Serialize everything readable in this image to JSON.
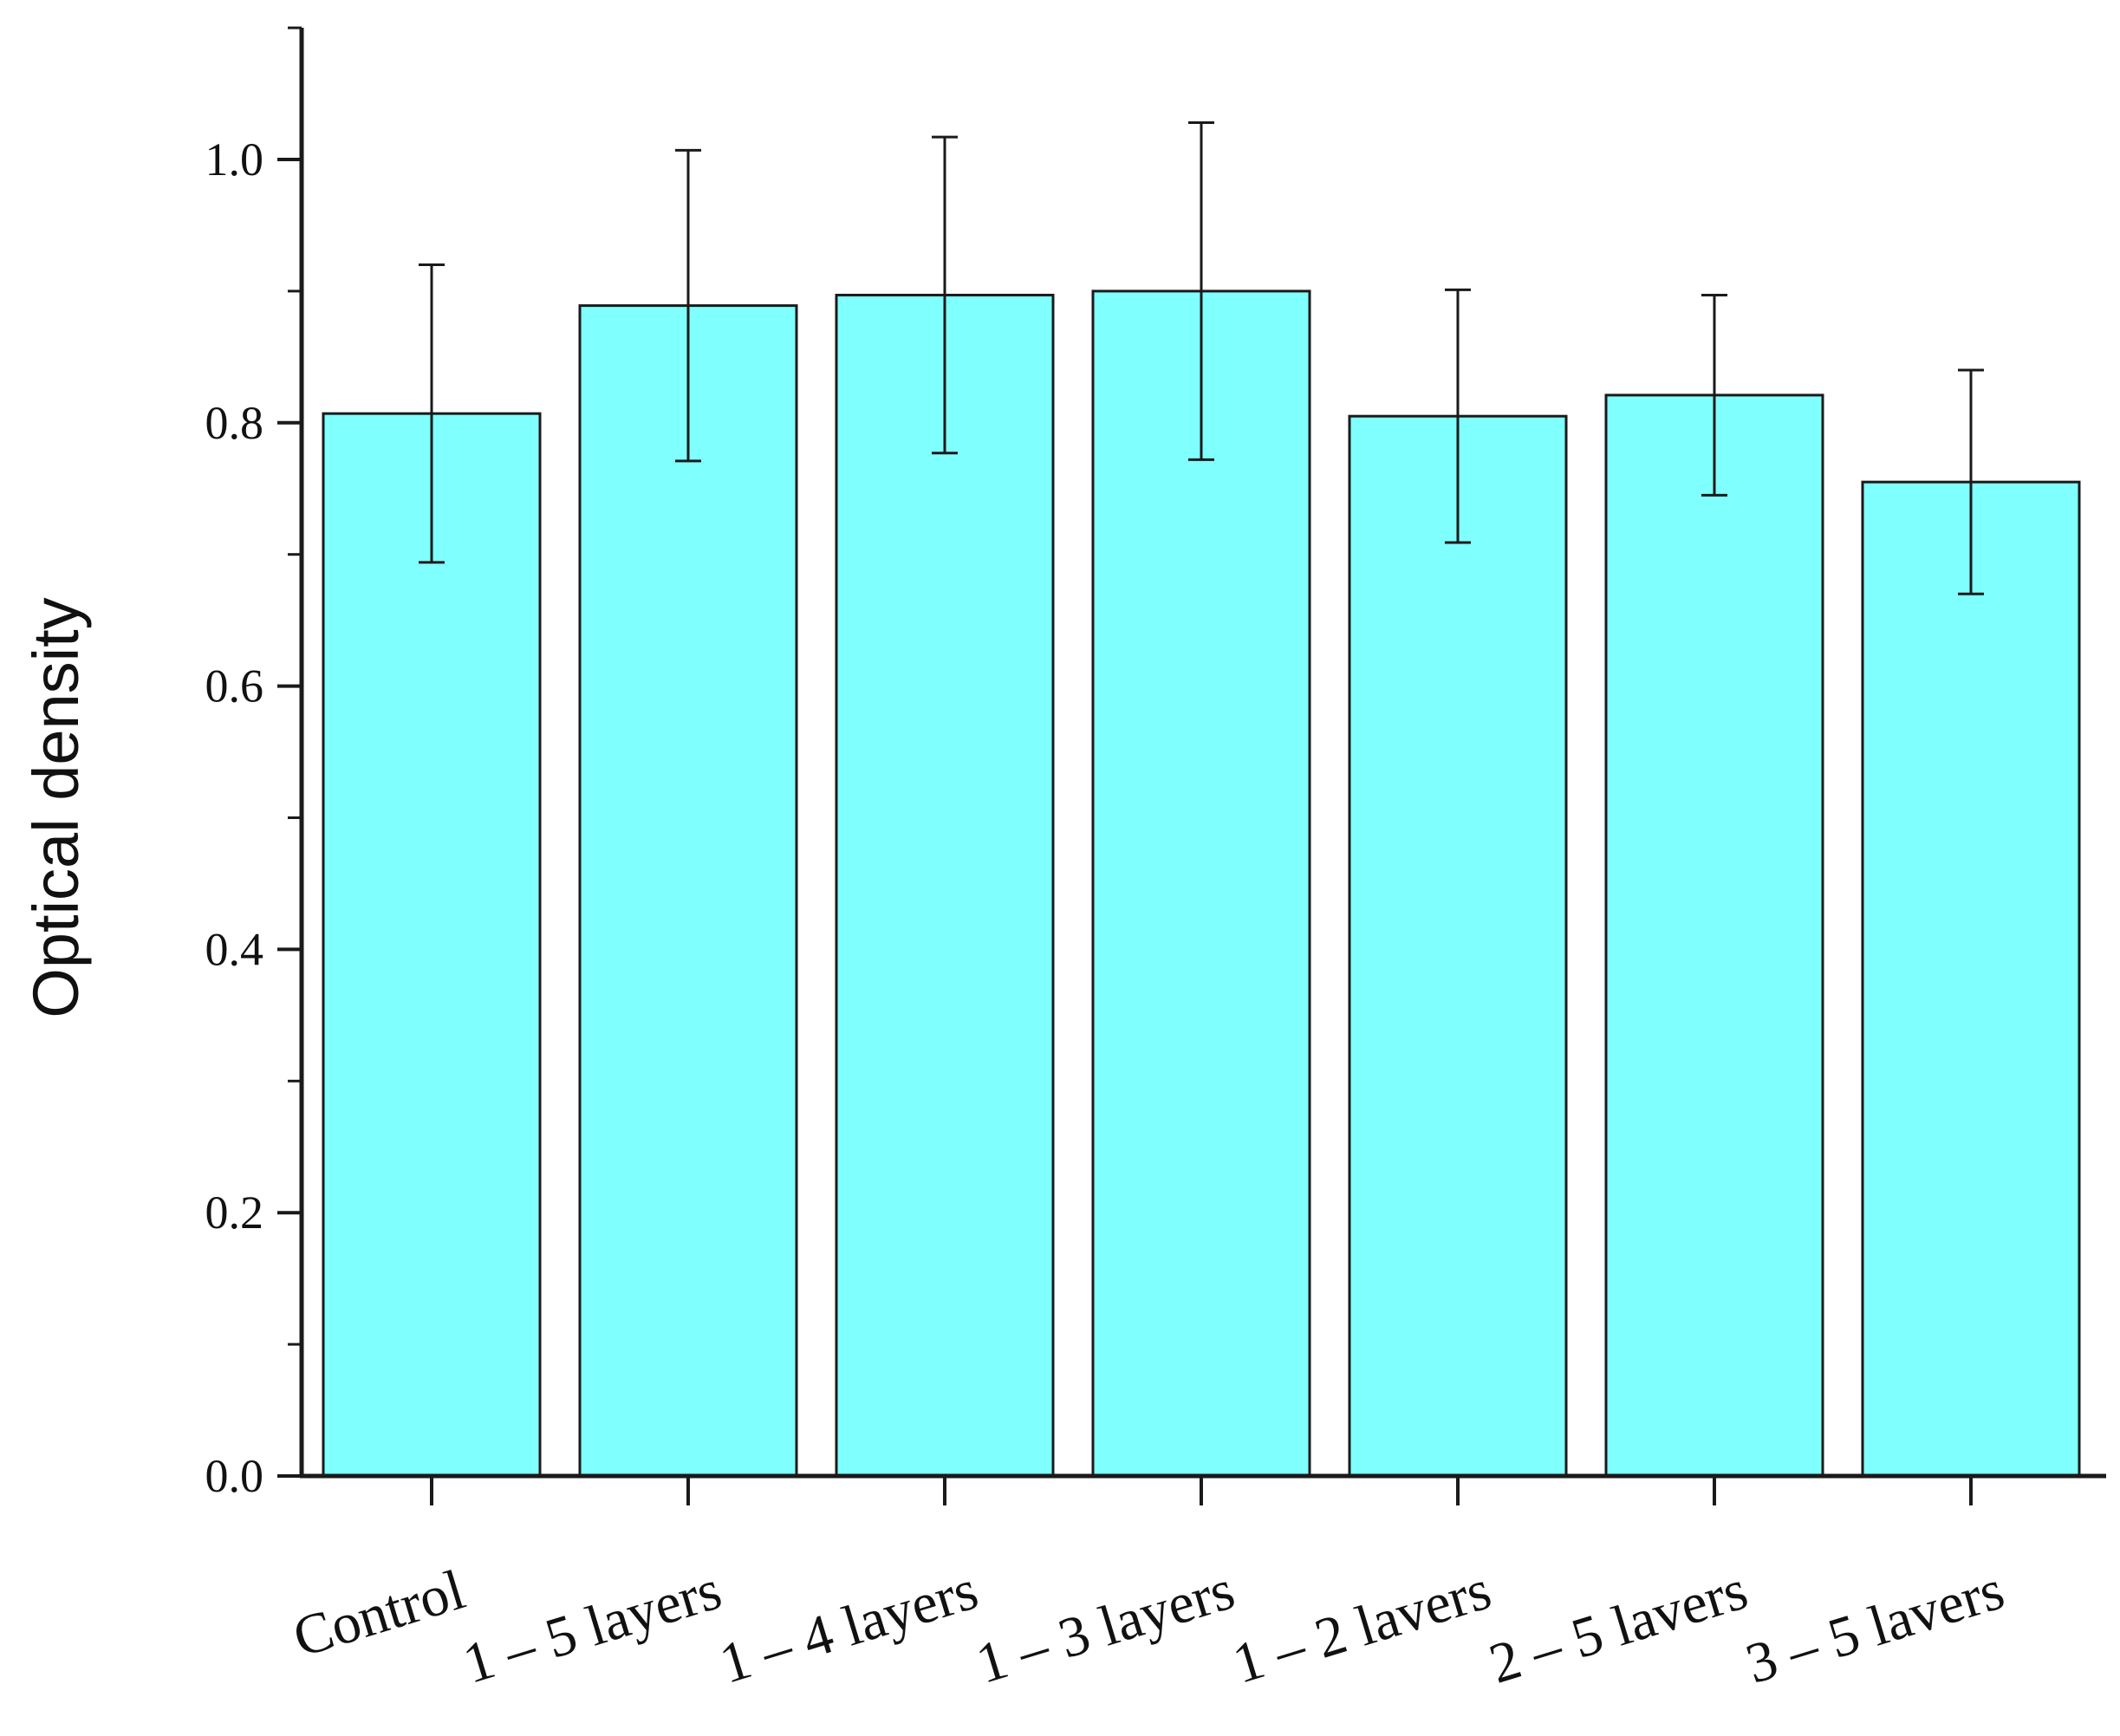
{
  "chart_data": {
    "type": "bar",
    "title": "",
    "xlabel": "",
    "ylabel": "Optical density",
    "ylim": [
      0,
      1.1
    ],
    "yticks": [
      0.0,
      0.2,
      0.4,
      0.6,
      0.8,
      1.0
    ],
    "ytick_labels": [
      "0.0",
      "0.2",
      "0.4",
      "0.6",
      "0.8",
      "1.0"
    ],
    "minor_ticks": true,
    "grid": false,
    "legend": false,
    "bar_color": "#80ffff",
    "categories": [
      "Control",
      "1 – 5 layers",
      "1 – 4 layers",
      "1 – 3 layers",
      "1 – 2 lavers",
      "2 – 5 lavers",
      "3 – 5 lavers"
    ],
    "values": [
      0.807,
      0.889,
      0.897,
      0.9,
      0.805,
      0.821,
      0.755
    ],
    "error": [
      0.113,
      0.118,
      0.12,
      0.128,
      0.096,
      0.076,
      0.085
    ]
  }
}
